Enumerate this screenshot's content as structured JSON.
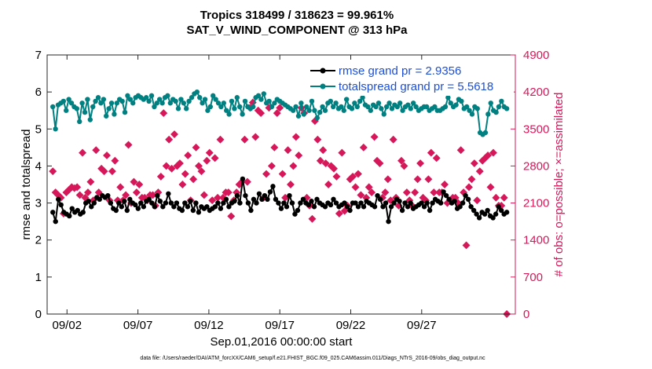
{
  "chart_data": {
    "type": "line",
    "title": "Tropics 318499 / 318623 = 99.961%",
    "subtitle": "SAT_V_WIND_COMPONENT @ 313 hPa",
    "xlabel": "Sep.01,2016 00:00:00 start",
    "ylabel_left": "rmse and totalspread",
    "ylabel_right": "# of obs: o=possible; ×=assimilated",
    "footnote": "data file: /Users/raeder/DAI/ATM_forcXX/CAM6_setup/f.e21.FHIST_BGC.f09_025.CAM6assim.011/Diags_NTrS_2016-09/obs_diag_output.nc",
    "x_range": [
      0.6,
      33.6
    ],
    "x_ticks": [
      {
        "v": 2,
        "label": "09/02"
      },
      {
        "v": 7,
        "label": "09/07"
      },
      {
        "v": 12,
        "label": "09/12"
      },
      {
        "v": 17,
        "label": "09/17"
      },
      {
        "v": 22,
        "label": "09/22"
      },
      {
        "v": 27,
        "label": "09/27"
      }
    ],
    "y_left_range": [
      0,
      7
    ],
    "y_left_ticks": [
      "0",
      "1",
      "2",
      "3",
      "4",
      "5",
      "6",
      "7"
    ],
    "y_right_range": [
      0,
      4900
    ],
    "y_right_ticks": [
      "0",
      "700",
      "1400",
      "2100",
      "2800",
      "3500",
      "4200",
      "4900"
    ],
    "colors": {
      "rmse": "#000000",
      "spread": "#008080",
      "obs": "#d6185a",
      "legend_text": "#1f4fd1"
    },
    "legend": [
      {
        "key": "rmse",
        "label": "rmse grand pr = 2.9356"
      },
      {
        "key": "spread",
        "label": "totalspread grand pr = 5.5618"
      }
    ],
    "series": [
      {
        "name": "rmse",
        "values": [
          2.75,
          2.5,
          3.1,
          2.95,
          2.75,
          2.7,
          2.65,
          2.85,
          2.75,
          2.8,
          2.7,
          2.75,
          3.0,
          3.05,
          2.9,
          3.0,
          3.15,
          3.1,
          3.2,
          3.15,
          3.2,
          3.0,
          2.85,
          2.8,
          3.0,
          2.9,
          3.05,
          2.8,
          3.1,
          3.0,
          2.95,
          2.85,
          3.0,
          2.9,
          3.05,
          3.1,
          3.0,
          2.9,
          3.2,
          3.05,
          2.9,
          3.0,
          3.25,
          3.0,
          2.9,
          3.0,
          2.85,
          2.8,
          3.0,
          2.9,
          3.05,
          2.8,
          3.0,
          2.75,
          2.9,
          2.85,
          2.9,
          2.8,
          2.85,
          2.9,
          3.0,
          2.85,
          3.0,
          3.1,
          2.9,
          3.0,
          3.05,
          3.2,
          3.0,
          3.65,
          3.2,
          3.0,
          2.8,
          3.1,
          3.0,
          3.25,
          3.1,
          3.2,
          3.1,
          3.3,
          3.45,
          3.1,
          3.0,
          2.85,
          3.0,
          2.9,
          3.2,
          3.0,
          2.7,
          2.8,
          3.0,
          3.1,
          3.0,
          2.95,
          3.05,
          2.9,
          3.1,
          3.0,
          2.95,
          2.9,
          3.0,
          2.95,
          3.1,
          3.0,
          2.9,
          2.95,
          3.0,
          2.9,
          2.8,
          3.0,
          3.0,
          2.9,
          3.0,
          2.9,
          3.05,
          3.0,
          2.95,
          2.9,
          3.2,
          3.1,
          2.9,
          3.0,
          2.5,
          2.9,
          3.0,
          3.1,
          3.05,
          2.8,
          3.0,
          2.9,
          3.0,
          2.85,
          2.9,
          2.95,
          3.0,
          2.9,
          3.0,
          2.8,
          3.0,
          3.1,
          3.05,
          3.0,
          3.3,
          3.2,
          3.1,
          3.0,
          3.05,
          2.85,
          2.9,
          3.0,
          3.2,
          3.1,
          2.9,
          2.8,
          2.7,
          2.6,
          2.75,
          2.7,
          2.8,
          2.65,
          2.6,
          2.7,
          2.9,
          2.8,
          2.7,
          2.75
        ]
      },
      {
        "name": "totalspread",
        "values": [
          5.6,
          5.0,
          5.65,
          5.7,
          5.75,
          5.5,
          5.8,
          5.7,
          5.6,
          5.55,
          5.2,
          5.7,
          5.45,
          5.8,
          5.25,
          5.6,
          5.75,
          5.85,
          5.7,
          5.8,
          5.35,
          5.55,
          5.7,
          5.4,
          5.7,
          5.8,
          5.75,
          5.45,
          5.9,
          5.8,
          5.7,
          5.85,
          5.9,
          5.85,
          5.8,
          5.85,
          5.75,
          5.9,
          5.6,
          5.7,
          5.8,
          5.7,
          5.85,
          5.9,
          5.7,
          5.8,
          5.75,
          5.55,
          5.8,
          5.7,
          5.55,
          5.75,
          5.85,
          5.95,
          6.0,
          5.85,
          5.7,
          5.8,
          5.5,
          5.6,
          5.9,
          5.8,
          5.7,
          5.6,
          5.7,
          5.5,
          5.4,
          5.75,
          5.55,
          5.85,
          5.6,
          5.4,
          5.75,
          5.6,
          5.55,
          5.6,
          5.85,
          5.9,
          5.8,
          5.95,
          5.7,
          5.75,
          5.6,
          5.7,
          5.8,
          5.75,
          5.7,
          5.65,
          5.6,
          5.55,
          5.5,
          5.6,
          5.35,
          5.7,
          5.4,
          5.6,
          5.5,
          5.75,
          5.5,
          5.3,
          5.45,
          5.6,
          5.5,
          5.7,
          5.75,
          5.6,
          5.7,
          5.55,
          5.6,
          5.5,
          5.8,
          5.6,
          5.55,
          5.7,
          5.6,
          5.75,
          5.85,
          5.65,
          5.6,
          5.5,
          5.65,
          5.6,
          5.7,
          5.55,
          5.4,
          5.6,
          5.7,
          5.55,
          5.65,
          5.6,
          5.7,
          5.5,
          5.6,
          5.65,
          5.55,
          5.7,
          5.6,
          5.5,
          5.55,
          5.6,
          5.6,
          5.5,
          5.55,
          5.6,
          5.5,
          5.5,
          5.55,
          5.6,
          5.85,
          5.7,
          5.6,
          5.65,
          5.8,
          5.75,
          5.55,
          5.6,
          5.5,
          5.4,
          5.6,
          5.55,
          4.9,
          4.85,
          4.9,
          5.4,
          5.7,
          5.5,
          5.45,
          5.6,
          5.75,
          5.6,
          5.55
        ]
      },
      {
        "name": "obs_assimilated",
        "values": [
          2700,
          2300,
          2250,
          2200,
          1900,
          2300,
          2350,
          2400,
          2380,
          2400,
          2250,
          3050,
          2200,
          2300,
          2500,
          2150,
          3100,
          2300,
          2750,
          2700,
          3000,
          2150,
          2700,
          2900,
          2150,
          2400,
          2150,
          2250,
          3200,
          2100,
          2500,
          2300,
          2450,
          2200,
          2200,
          2150,
          2250,
          2250,
          2050,
          2300,
          2600,
          3800,
          2800,
          3300,
          2750,
          3400,
          2800,
          2850,
          2450,
          2650,
          3000,
          2150,
          2550,
          3150,
          2800,
          2700,
          2250,
          2900,
          3050,
          2150,
          2950,
          2200,
          3300,
          2200,
          2300,
          2300,
          1850,
          2150,
          2300,
          2450,
          2500,
          3300,
          2500,
          3900,
          4000,
          3350,
          3850,
          3800,
          2200,
          2650,
          3900,
          2800,
          3150,
          3800,
          3900,
          2650,
          2200,
          3100,
          2450,
          2800,
          3350,
          3000,
          3900,
          3800,
          2200,
          2050,
          1800,
          3650,
          3300,
          2900,
          3100,
          2850,
          2450,
          2800,
          2750,
          2600,
          1900,
          3050,
          1950,
          2050,
          2550,
          2600,
          2400,
          2650,
          2250,
          3150,
          2200,
          2400,
          2300,
          3350,
          2900,
          2850,
          2200,
          2300,
          2550,
          2150,
          3300,
          2200,
          2050,
          2900,
          2800,
          2300,
          2150,
          2050,
          2300,
          2550,
          2850,
          2200,
          2150,
          2550,
          3050,
          2300,
          2950,
          2300,
          2300,
          2450,
          2100,
          2150,
          2200,
          2200,
          2100,
          3100,
          2300,
          1300,
          2400,
          2550,
          2850,
          2150,
          2700,
          2900,
          2950,
          3000,
          2400,
          3050,
          2200,
          2050,
          2050,
          2200,
          0
        ]
      }
    ]
  }
}
